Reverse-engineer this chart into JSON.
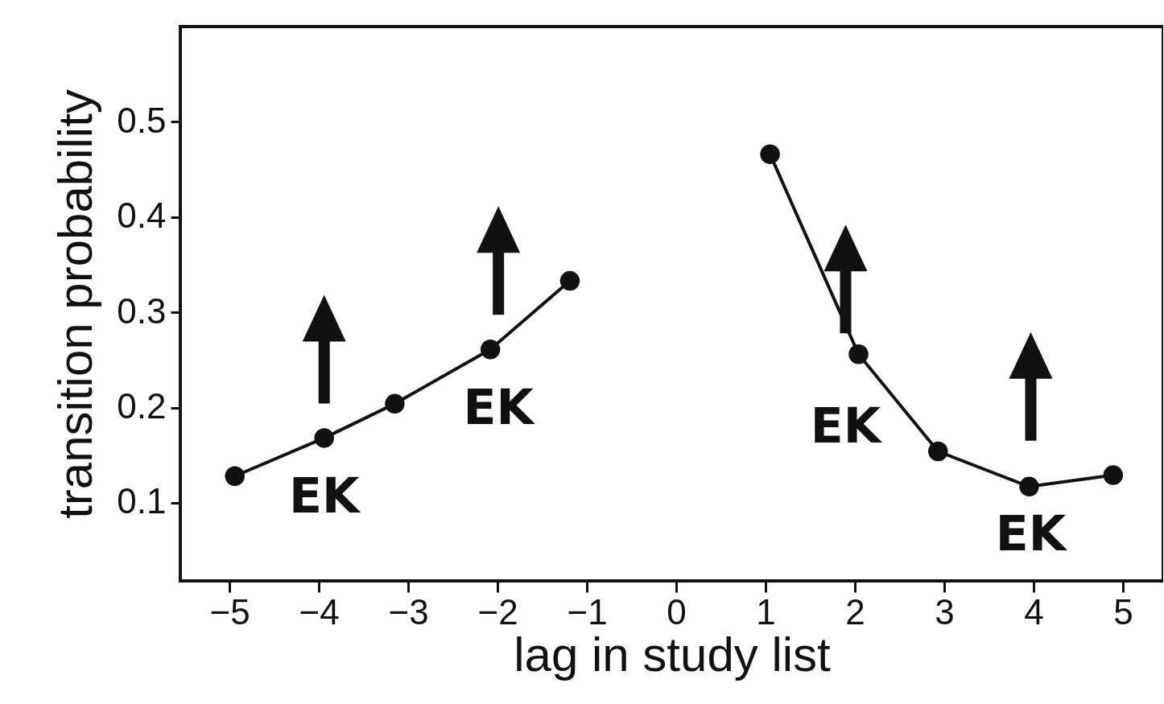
{
  "chart_data": {
    "type": "line",
    "xlabel": "lag in study list",
    "ylabel": "transition probability",
    "x": [
      -4.94,
      -3.94,
      -3.15,
      -2.08,
      -1.19,
      0,
      1.05,
      2.04,
      2.93,
      3.95,
      4.89
    ],
    "series": [
      {
        "color": "#111111",
        "values": [
          0.128,
          0.168,
          0.204,
          0.261,
          0.333,
          null,
          0.466,
          0.256,
          0.154,
          0.117,
          0.129
        ]
      }
    ],
    "xlim": [
      -5.55,
      5.45
    ],
    "xticks": [
      -5,
      -4,
      -3,
      -2,
      -1,
      0,
      1,
      2,
      3,
      4,
      5
    ],
    "ylim": [
      0.018,
      0.6
    ],
    "yticks": [
      0.1,
      0.2,
      0.3,
      0.4,
      0.5
    ],
    "marker": "circle",
    "line_style": "solid",
    "grid": false,
    "legend": false,
    "annotations": [
      "EK",
      "EK",
      "EK",
      "EK"
    ]
  }
}
